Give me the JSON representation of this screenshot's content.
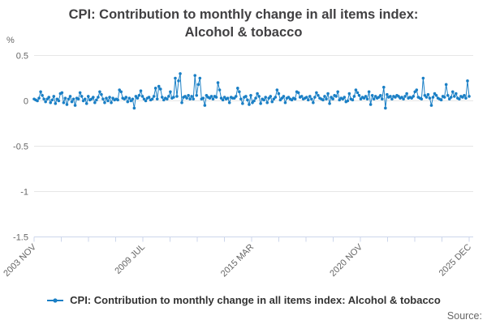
{
  "title": {
    "line1": "CPI: Contribution to monthly change in all items index:",
    "line2": "Alcohol & tobacco"
  },
  "y_axis_unit": "%",
  "legend": {
    "label": "CPI: Contribution to monthly change in all items index: Alcohol & tobacco"
  },
  "source_label": "Source:",
  "colors": {
    "series": "#1a7fc5",
    "grid": "#e6e6e6",
    "axis": "#ccd6eb",
    "tick_label": "#666666",
    "title_text": "#414042",
    "legend_text": "#333333",
    "source_text": "#666666"
  },
  "chart_data": {
    "type": "line",
    "title": "CPI: Contribution to monthly change in all items index: Alcohol & tobacco",
    "xlabel": "",
    "ylabel": "%",
    "ylim": [
      -1.5,
      0.5
    ],
    "yticks": [
      {
        "label": "0.5",
        "value": 0.5
      },
      {
        "label": "0",
        "value": 0
      },
      {
        "label": "-0.5",
        "value": -0.5
      },
      {
        "label": "-1",
        "value": -1
      },
      {
        "label": "-1.5",
        "value": -1.5
      }
    ],
    "x_range": "2003 NOV to 2025 DEC, monthly",
    "xtick_labels": [
      "2003 NOV",
      "2009 JUL",
      "2015 MAR",
      "2020 NOV",
      "2025 DEC"
    ],
    "minor_ticks_between_labeled": 3,
    "grid": true,
    "legend_position": "bottom",
    "markers": true,
    "series": [
      {
        "name": "CPI: Contribution to monthly change in all items index: Alcohol & tobacco",
        "values": [
          0.02,
          0.01,
          0,
          0.03,
          0.1,
          0.06,
          0.02,
          -0.01,
          0.02,
          0.04,
          -0.02,
          0.01,
          0.05,
          -0.03,
          0.02,
          0,
          0.08,
          0.09,
          -0.02,
          0.03,
          -0.04,
          0.02,
          0.05,
          -0.01,
          0.02,
          -0.05,
          0.03,
          0.02,
          0.09,
          0.05,
          0,
          0.02,
          -0.03,
          0.05,
          0.01,
          0.02,
          0.04,
          -0.02,
          0.01,
          0.04,
          0.1,
          0.07,
          0.02,
          -0.02,
          0.03,
          0,
          0.04,
          -0.02,
          0.03,
          0.01,
          0.02,
          0.01,
          0.12,
          0.1,
          0.03,
          0.02,
          0.04,
          -0.01,
          0.03,
          0,
          0.02,
          -0.08,
          0.05,
          0.03,
          0.06,
          0.11,
          0.05,
          0.02,
          0,
          0.03,
          0.04,
          0.01,
          0.02,
          0.05,
          0.14,
          0.02,
          0.16,
          0.13,
          0.04,
          0.01,
          0.03,
          0.02,
          0.05,
          0.1,
          0.03,
          0.04,
          0.25,
          0.05,
          0.22,
          0.3,
          -0.02,
          0.04,
          0.05,
          0.03,
          0.06,
          0.02,
          0.05,
          0.02,
          0.28,
          0.06,
          0.18,
          0.25,
          0.02,
          0.03,
          -0.05,
          0.06,
          0.04,
          0.03,
          0.05,
          0.02,
          0.05,
          0.04,
          0.2,
          0.12,
          0.03,
          0.01,
          0.04,
          0.02,
          0.03,
          -0.02,
          0.04,
          0.03,
          0.03,
          0.05,
          0.14,
          0.1,
          0.02,
          -0.03,
          0.04,
          0.05,
          0.01,
          -0.04,
          0.06,
          -0.02,
          0,
          0.03,
          0.08,
          0.05,
          -0.03,
          0.02,
          0.01,
          0.04,
          -0.02,
          0.03,
          0.05,
          -0.01,
          0.02,
          0.04,
          0.12,
          0.08,
          0.01,
          0.03,
          0.05,
          -0.02,
          0.03,
          0.04,
          0.02,
          0.01,
          0.03,
          0.02,
          0.1,
          0.09,
          0.04,
          0.05,
          0.02,
          0.03,
          0.04,
          0.01,
          0.05,
          0.02,
          -0.02,
          0.04,
          0.09,
          0.06,
          0.03,
          0.02,
          0.01,
          0.05,
          0.02,
          0.08,
          -0.03,
          0.04,
          0.02,
          0.06,
          0.05,
          0.1,
          0.01,
          0.03,
          0.02,
          0.04,
          -0.01,
          0,
          0.08,
          0.02,
          0.01,
          0.05,
          0.12,
          0.09,
          0.06,
          0.02,
          0.04,
          0.03,
          0.05,
          0.02,
          0.1,
          -0.04,
          0.06,
          0.02,
          0.05,
          0.03,
          0.04,
          0.06,
          0.02,
          0.15,
          -0.08,
          0.07,
          0.04,
          0.05,
          0.02,
          0.05,
          0.04,
          0.06,
          0.05,
          0.03,
          0.04,
          0.02,
          0.05,
          0.08,
          0.03,
          0.04,
          0.03,
          0.05,
          0.1,
          0.12,
          0.04,
          0.03,
          0.02,
          0.25,
          0.06,
          0.04,
          0.07,
          0.03,
          -0.05,
          0.04,
          0.08,
          0.06,
          0.03,
          0.02,
          0.01,
          0.05,
          0.04,
          0.18,
          0.06,
          0.02,
          0.04,
          0.1,
          0.05,
          0.08,
          0.03,
          0.02,
          0.05,
          0.04,
          0.06,
          0.03,
          0.22,
          0.05
        ]
      }
    ]
  }
}
